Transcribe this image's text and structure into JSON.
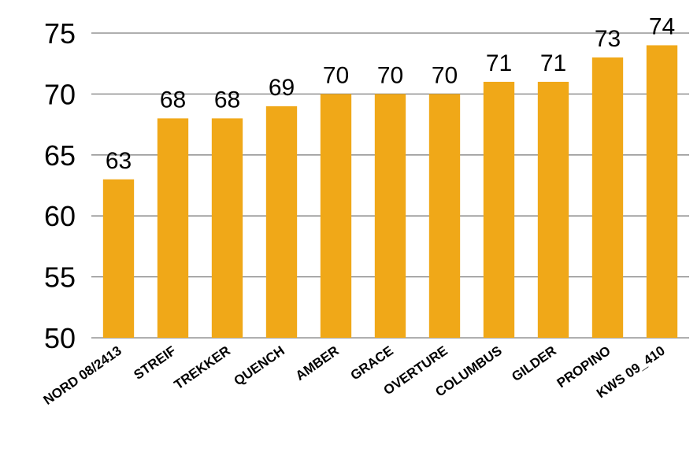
{
  "chart_data": {
    "type": "bar",
    "title": "",
    "xlabel": "",
    "ylabel": "",
    "categories": [
      "NORD 08/2413",
      "STREIF",
      "TREKKER",
      "QUENCH",
      "AMBER",
      "GRACE",
      "OVERTURE",
      "COLUMBUS",
      "GILDER",
      "PROPINO",
      "KWS 09_410"
    ],
    "values": [
      63,
      68,
      68,
      69,
      70,
      70,
      70,
      71,
      71,
      73,
      74
    ],
    "ylim": [
      50,
      75
    ],
    "yticks": [
      50,
      55,
      60,
      65,
      70,
      75
    ],
    "grid": true,
    "data_labels": true,
    "legend": "none",
    "colors": {
      "bar": "#F0A818",
      "grid": "#7f7f7f",
      "text": "#000000"
    }
  }
}
